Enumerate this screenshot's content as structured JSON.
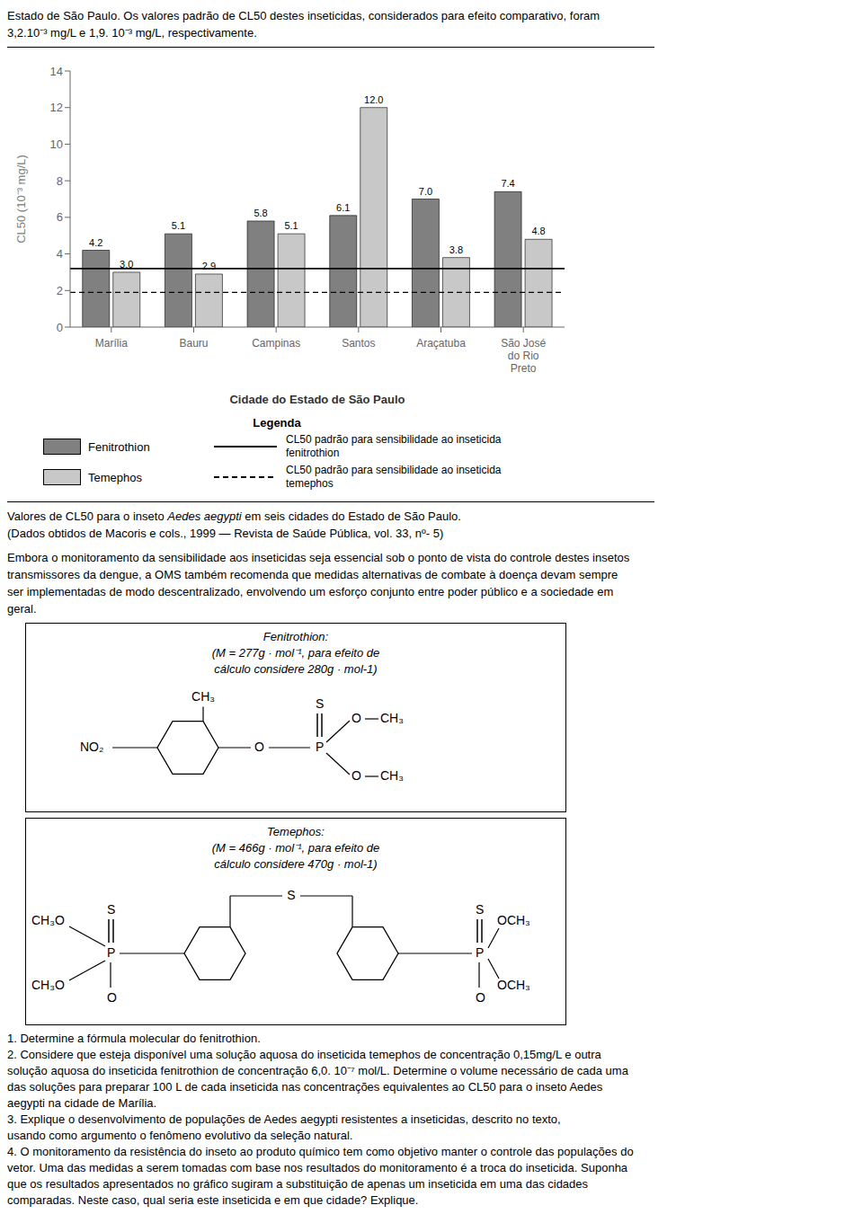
{
  "chart_data": {
    "type": "bar",
    "categories": [
      "Marília",
      "Bauru",
      "Campinas",
      "Santos",
      "Araçatuba",
      "São José\ndo Rio\nPreto"
    ],
    "series": [
      {
        "name": "Fenitrothion",
        "color": "#808080",
        "values": [
          4.2,
          5.1,
          5.8,
          6.1,
          7.0,
          7.4
        ],
        "value_labels": [
          "4.2",
          "5.1",
          "5.8",
          "6.1",
          "7.0",
          "7.4"
        ]
      },
      {
        "name": "Temephos",
        "color": "#c8c8c8",
        "values": [
          3.0,
          2.9,
          5.1,
          12.0,
          3.8,
          4.8
        ],
        "value_labels": [
          "3.0",
          "2.9",
          "5.1",
          "12.0",
          "3.8",
          "4.8"
        ]
      }
    ],
    "reference_lines": [
      {
        "label": "CL50 padrão para sensibilidade ao inseticida fenitrothion",
        "value": 3.2,
        "line_style": "solid",
        "color": "#000000"
      },
      {
        "label": "CL50 padrão para sensibilidade ao inseticida temephos",
        "value": 1.9,
        "line_style": "dashed",
        "color": "#000000"
      }
    ],
    "x_label": "Cidade do Estado de São Paulo",
    "y_label": "CL50 (10⁻³ mg/L)",
    "ylim": [
      0,
      14
    ],
    "yticks": [
      0,
      2,
      4,
      6,
      8,
      10,
      12,
      14
    ],
    "grid": false,
    "data_labels": true,
    "legend_title": "Legenda",
    "annotations": {
      "header": [
        "Estado de São Paulo. Os valores padrão de CL50 destes inseticidas, considerados para efeito comparativo, foram",
        "3,2.10⁻³ mg/L e 1,9. 10⁻³ mg/L, respectivamente."
      ],
      "caption": [
        [
          "Valores de CL50 para o inseto ",
          "Aedes aegypti",
          " em seis cidades do Estado de São Paulo."
        ],
        [
          "(Dados obtidos de Macoris e cols., 1999 — Revista de Saúde Pública, vol. 33, nº- 5)"
        ]
      ],
      "paragraph": [
        "Embora o monitoramento da sensibilidade aos inseticidas seja essencial sob o ponto de vista do controle destes insetos",
        "transmissores da dengue, a OMS também recomenda que medidas alternativas de combate à doença devam sempre",
        "ser implementadas de modo descentralizado, envolvendo um esforço conjunto entre poder público e a sociedade em",
        "geral."
      ],
      "box_fenitrothion": {
        "title": [
          "Fenitrothion:",
          "(M = 277g · mol⁻¹, para efeito de",
          "cálculo considere 280g · mol-1)"
        ],
        "atoms": [
          "CH₃",
          "NO₂",
          "O",
          "P",
          "S",
          "O",
          "CH₃",
          "O",
          "CH₃"
        ]
      },
      "box_temephos": {
        "title": [
          "Temephos:",
          "(M = 466g · mol⁻¹, para efeito de",
          "cálculo considere 470g · mol-1)"
        ],
        "atoms": [
          "S",
          "S",
          "P",
          "CH₃O",
          "CH₃O",
          "O",
          "S",
          "P",
          "OCH₃",
          "OCH₃",
          "O"
        ]
      },
      "questions": [
        "1. Determine a fórmula molecular do fenitrothion.",
        "2. Considere que esteja disponível uma solução aquosa do inseticida temephos de concentração 0,15mg/L e outra",
        "solução aquosa do inseticida fenitrothion de concentração 6,0. 10⁻⁷ mol/L. Determine o volume necessário de cada uma",
        "das soluções para preparar 100 L de cada inseticida nas concentrações equivalentes ao CL50 para o inseto Aedes",
        "aegypti na cidade de Marília.",
        "3. Explique o desenvolvimento de populações de Aedes aegypti resistentes a inseticidas, descrito no texto,",
        "usando como argumento o fenômeno evolutivo da seleção natural.",
        "4. O monitoramento da resistência do inseto ao produto químico tem como objetivo manter o controle das populações do",
        "vetor. Uma das medidas a serem tomadas com base nos resultados do monitoramento é a troca do inseticida. Suponha",
        "que os resultados apresentados no gráfico sugiram a substituição de apenas um inseticida em uma das cidades",
        "comparadas. Neste caso, qual seria este inseticida e em que cidade? Explique."
      ]
    }
  }
}
